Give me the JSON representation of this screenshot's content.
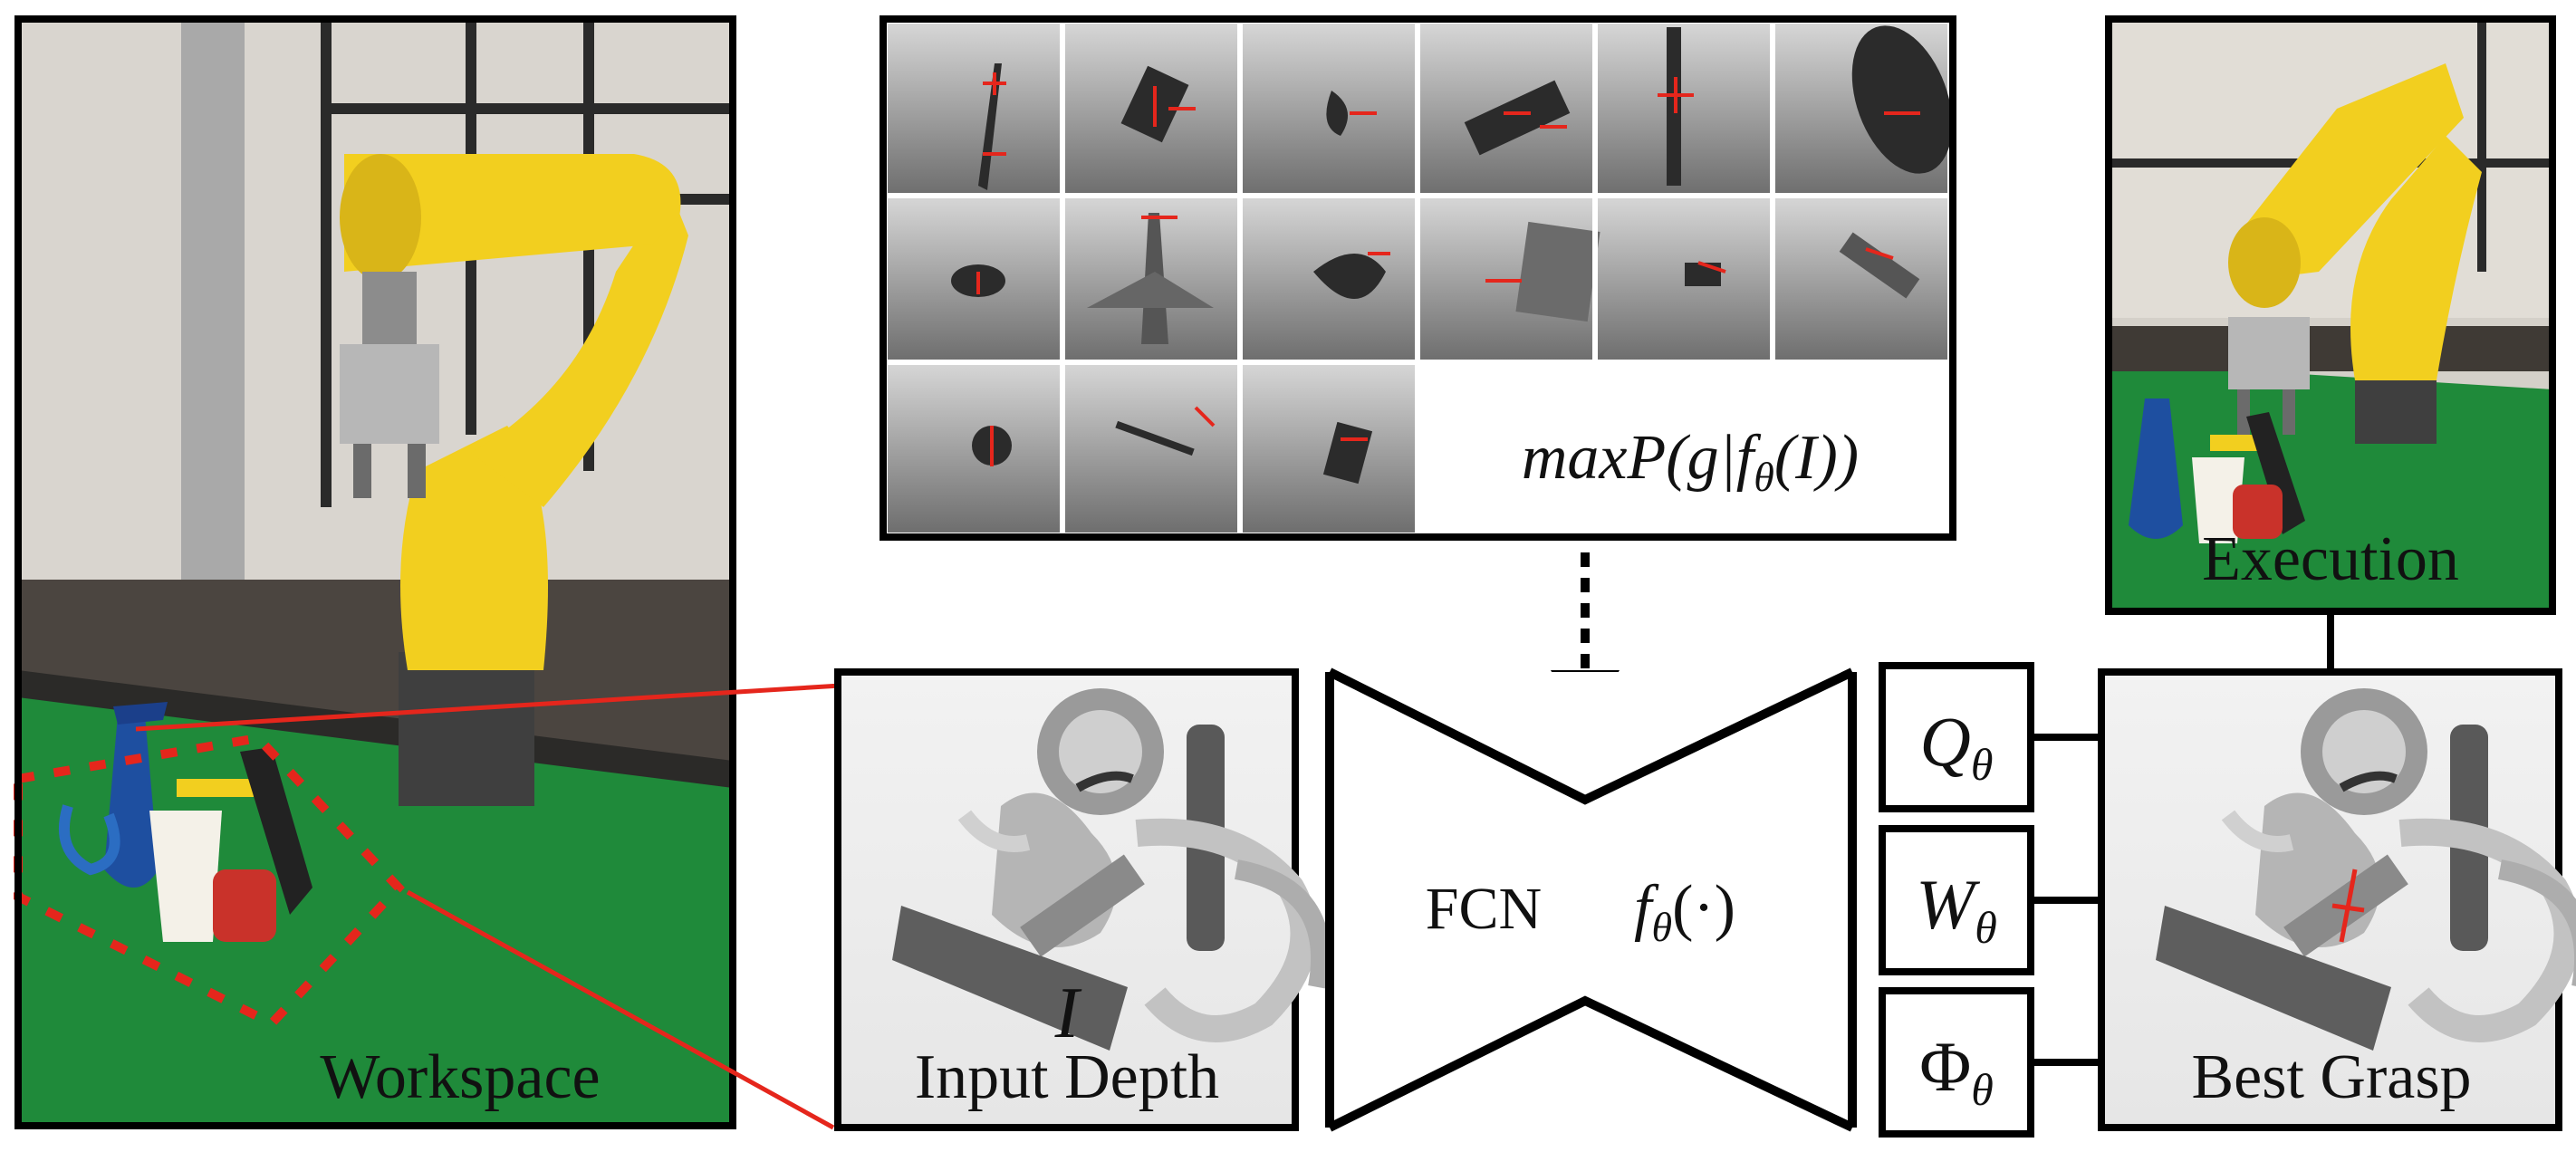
{
  "panels": {
    "workspace": {
      "label": "Workspace"
    },
    "input_depth": {
      "symbol": "I",
      "label": "Input Depth"
    },
    "network": {
      "label": "FCN",
      "function_base": "f",
      "function_sub": "θ",
      "function_arg": "(·)"
    },
    "training_objective": {
      "text": "maxP(g|f",
      "sub": "θ",
      "tail": "(I))"
    },
    "execution": {
      "label": "Execution"
    },
    "best_grasp": {
      "label": "Best Grasp"
    },
    "outputs": [
      {
        "base": "Q",
        "sub": "θ"
      },
      {
        "base": "W",
        "sub": "θ"
      },
      {
        "base": "Φ",
        "sub": "θ"
      }
    ]
  },
  "colors": {
    "robot_yellow": "#f2cf1f",
    "table_green": "#1f8a3a",
    "grasp_red": "#e5261c",
    "frame": "#000000"
  },
  "icons": [
    "robot-arm-icon",
    "dashed-arrow-icon",
    "grasp-marker-icon"
  ]
}
